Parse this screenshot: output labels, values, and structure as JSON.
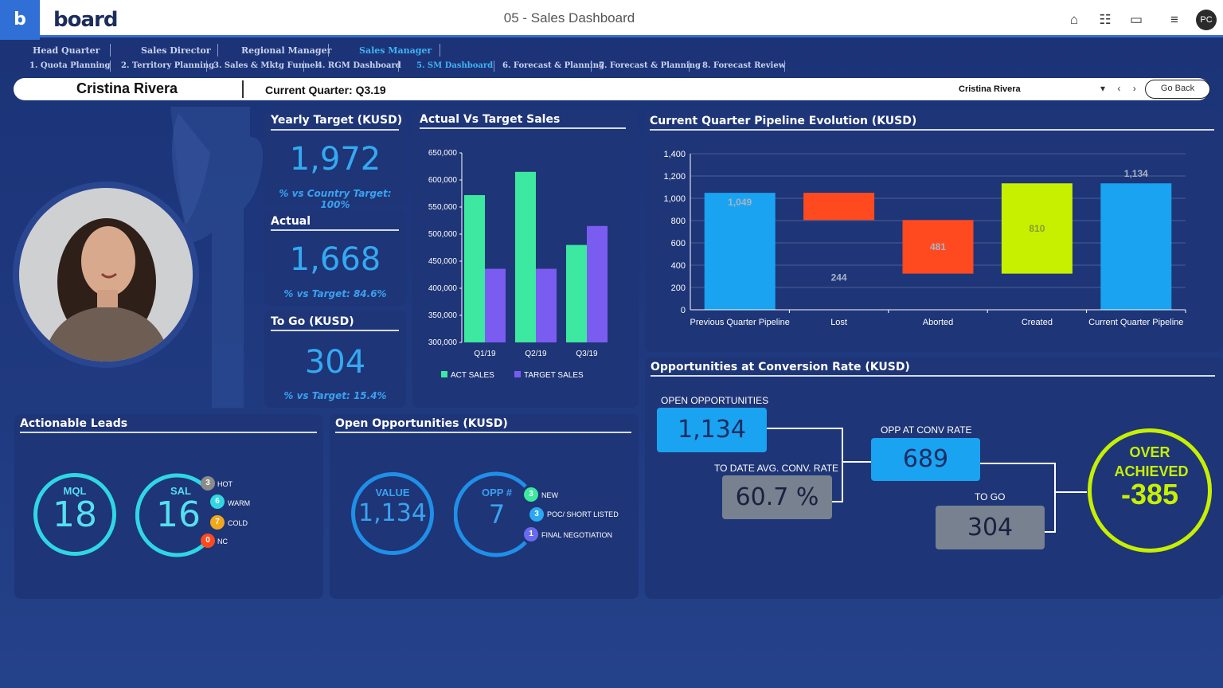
{
  "app": {
    "brand": "board",
    "logo_letter": "b",
    "title": "05 - Sales Dashboard",
    "user_initials": "PC"
  },
  "colors": {
    "accent": "#35a9f2",
    "cyan": "#2fd7e4",
    "green": "#3de8a0",
    "purple": "#7b5cf0",
    "red": "#ff4a1f",
    "lime": "#c6f000",
    "blue": "#1aa3f0"
  },
  "icons": [
    "home-icon",
    "hierarchy-icon",
    "chat-icon",
    "menu-icon"
  ],
  "nav": {
    "roles": [
      "Head Quarter",
      "Sales Director",
      "Regional Manager",
      "Sales Manager"
    ],
    "tabs": [
      "1. Quota Planning",
      "2. Territory Planning",
      "3. Sales & Mktg Funnel",
      "4. RGM Dashboard",
      "5. SM Dashboard",
      "6. Forecast & Planning",
      "7. Forecast & Planning",
      "8. Forecast Review"
    ]
  },
  "userbar": {
    "name": "Cristina Rivera",
    "quarter": "Current Quarter: Q3.19",
    "selector": "Cristina Rivera",
    "selector_arrows": "▾ ‹ ›",
    "go_back": "Go Back"
  },
  "kpis": {
    "yearly": {
      "title": "Yearly Target (KUSD)",
      "value": "1,972",
      "note": "% vs Country Target: 100%"
    },
    "actual": {
      "title": "Actual",
      "value": "1,668",
      "note": "% vs Target: 84.6%"
    },
    "togo": {
      "title": "To Go (KUSD)",
      "value": "304",
      "note": "% vs Target: 15.4%"
    }
  },
  "leads": {
    "title": "Actionable Leads",
    "mql": {
      "label": "MQL",
      "value": "18"
    },
    "sal": {
      "label": "SAL",
      "value": "16"
    },
    "statuses": [
      {
        "count": "3",
        "label": "HOT",
        "color": "#8b8b8b"
      },
      {
        "count": "6",
        "label": "WARM",
        "color": "#2fd7e4"
      },
      {
        "count": "7",
        "label": "COLD",
        "color": "#f2a81b"
      },
      {
        "count": "0",
        "label": "NC",
        "color": "#ff4a1f"
      }
    ]
  },
  "opps": {
    "title": "Open Opportunities (KUSD)",
    "value": {
      "label": "VALUE",
      "value": "1,134"
    },
    "count": {
      "label": "OPP #",
      "value": "7"
    },
    "stages": [
      {
        "count": "3",
        "label": "NEW",
        "color": "#3de8a0"
      },
      {
        "count": "3",
        "label": "POC/ SHORT LISTED",
        "color": "#2aa8f2"
      },
      {
        "count": "1",
        "label": "FINAL NEGOTIATION",
        "color": "#6a6af0"
      }
    ]
  },
  "conversion": {
    "title": "Opportunities at Conversion Rate (KUSD)",
    "open_label": "OPEN OPPORTUNITIES",
    "open_value": "1,134",
    "conv_label": "OPP AT CONV RATE",
    "conv_value": "689",
    "rate_label": "TO DATE AVG. CONV. RATE",
    "rate_value": "60.7 %",
    "togo_label": "TO GO",
    "togo_value": "304",
    "over_line1": "OVER",
    "over_line2": "ACHIEVED",
    "over_value": "-385"
  },
  "chart_data": [
    {
      "type": "bar",
      "title": "Actual Vs Target Sales",
      "categories": [
        "Q1/19",
        "Q2/19",
        "Q3/19"
      ],
      "series": [
        {
          "name": "ACT SALES",
          "values": [
            572000,
            615000,
            480000
          ],
          "color": "#3de8a0"
        },
        {
          "name": "TARGET SALES",
          "values": [
            436000,
            436000,
            515000
          ],
          "color": "#7b5cf0"
        }
      ],
      "yticks": [
        "650,000",
        "600,000",
        "550,000",
        "500,000",
        "450,000",
        "400,000",
        "350,000",
        "300,000"
      ],
      "ylim": [
        300000,
        650000
      ]
    },
    {
      "type": "bar",
      "subtype": "waterfall",
      "title": "Current Quarter Pipeline Evolution (KUSD)",
      "categories": [
        "Previous Quarter Pipeline",
        "Lost",
        "Aborted",
        "Created",
        "Current Quarter Pipeline"
      ],
      "bars": [
        {
          "base": 0,
          "top": 1049,
          "label": "1,049",
          "color": "#1aa3f0"
        },
        {
          "base": 805,
          "top": 1049,
          "label": "244",
          "color": "#ff4a1f"
        },
        {
          "base": 324,
          "top": 805,
          "label": "481",
          "color": "#ff4a1f"
        },
        {
          "base": 324,
          "top": 1134,
          "label": "810",
          "color": "#c6f000"
        },
        {
          "base": 0,
          "top": 1134,
          "label": "1,134",
          "color": "#1aa3f0"
        }
      ],
      "yticks": [
        "1,400",
        "1,200",
        "1,000",
        "800",
        "600",
        "400",
        "200",
        "0"
      ],
      "ylim": [
        0,
        1400
      ]
    }
  ]
}
